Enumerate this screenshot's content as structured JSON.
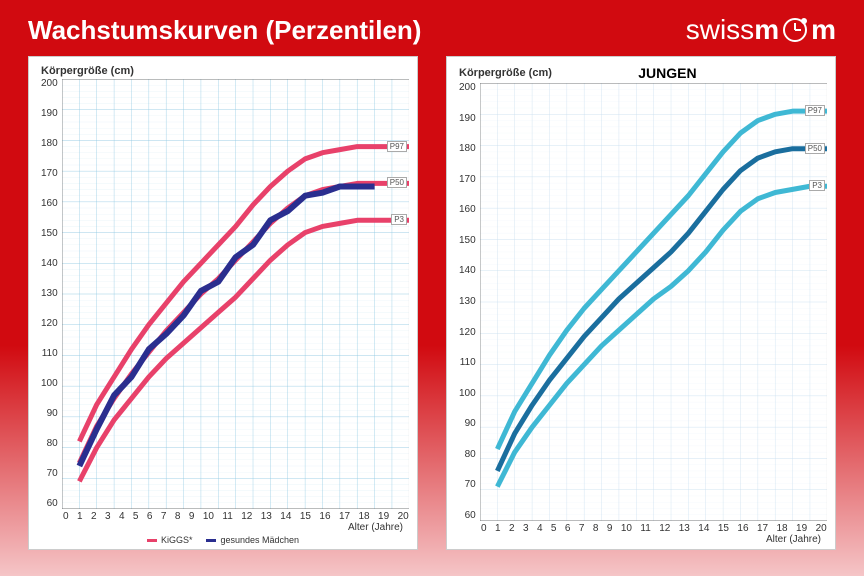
{
  "header": {
    "title": "Wachstumskurven (Perzentilen)",
    "logo_light": "swiss",
    "logo_bold": "m",
    "logo_end": "m"
  },
  "colors": {
    "bg_red": "#d10a10",
    "girls_grid": "#8fc9e3",
    "girls_p97": "#e8416a",
    "girls_p50": "#e8416a",
    "girls_p3": "#e8416a",
    "girls_sample": "#2a2e8f",
    "boys_grid": "#c9dff0",
    "boys_p97": "#3fb8d4",
    "boys_p50": "#1a6e9e",
    "boys_p3": "#3fb8d4"
  },
  "axes": {
    "y_title": "Körpergröße (cm)",
    "x_title": "Alter (Jahre)",
    "y_min": 60,
    "y_max": 200,
    "y_step": 10,
    "x_min": 0,
    "x_max": 20,
    "x_step": 1
  },
  "girls": {
    "title": "",
    "legend": [
      {
        "label": "KiGGS*",
        "color": "#e8416a"
      },
      {
        "label": "gesundes Mädchen",
        "color": "#2a2e8f"
      }
    ],
    "labels": {
      "p97": "P97",
      "p50": "P50",
      "p3": "P3"
    },
    "series": {
      "p97": [
        [
          1,
          82
        ],
        [
          2,
          94
        ],
        [
          3,
          103
        ],
        [
          4,
          112
        ],
        [
          5,
          120
        ],
        [
          6,
          127
        ],
        [
          7,
          134
        ],
        [
          8,
          140
        ],
        [
          9,
          146
        ],
        [
          10,
          152
        ],
        [
          11,
          159
        ],
        [
          12,
          165
        ],
        [
          13,
          170
        ],
        [
          14,
          174
        ],
        [
          15,
          176
        ],
        [
          16,
          177
        ],
        [
          17,
          178
        ],
        [
          18,
          178
        ],
        [
          19,
          178
        ],
        [
          20,
          178
        ]
      ],
      "p50": [
        [
          1,
          75
        ],
        [
          2,
          87
        ],
        [
          3,
          96
        ],
        [
          4,
          104
        ],
        [
          5,
          111
        ],
        [
          6,
          118
        ],
        [
          7,
          124
        ],
        [
          8,
          130
        ],
        [
          9,
          135
        ],
        [
          10,
          141
        ],
        [
          11,
          147
        ],
        [
          12,
          153
        ],
        [
          13,
          158
        ],
        [
          14,
          162
        ],
        [
          15,
          164
        ],
        [
          16,
          165
        ],
        [
          17,
          166
        ],
        [
          18,
          166
        ],
        [
          19,
          166
        ],
        [
          20,
          166
        ]
      ],
      "p3": [
        [
          1,
          69
        ],
        [
          2,
          80
        ],
        [
          3,
          89
        ],
        [
          4,
          96
        ],
        [
          5,
          103
        ],
        [
          6,
          109
        ],
        [
          7,
          114
        ],
        [
          8,
          119
        ],
        [
          9,
          124
        ],
        [
          10,
          129
        ],
        [
          11,
          135
        ],
        [
          12,
          141
        ],
        [
          13,
          146
        ],
        [
          14,
          150
        ],
        [
          15,
          152
        ],
        [
          16,
          153
        ],
        [
          17,
          154
        ],
        [
          18,
          154
        ],
        [
          19,
          154
        ],
        [
          20,
          154
        ]
      ],
      "sample": [
        [
          1,
          74
        ],
        [
          2,
          86
        ],
        [
          3,
          97
        ],
        [
          4,
          103
        ],
        [
          5,
          112
        ],
        [
          6,
          117
        ],
        [
          7,
          123
        ],
        [
          8,
          131
        ],
        [
          9,
          134
        ],
        [
          10,
          142
        ],
        [
          11,
          146
        ],
        [
          12,
          154
        ],
        [
          13,
          157
        ],
        [
          14,
          162
        ],
        [
          15,
          163
        ],
        [
          16,
          165
        ],
        [
          17,
          165
        ],
        [
          18,
          165
        ]
      ]
    }
  },
  "boys": {
    "title": "JUNGEN",
    "labels": {
      "p97": "P97",
      "p50": "P50",
      "p3": "P3"
    },
    "series": {
      "p97": [
        [
          1,
          83
        ],
        [
          2,
          95
        ],
        [
          3,
          104
        ],
        [
          4,
          113
        ],
        [
          5,
          121
        ],
        [
          6,
          128
        ],
        [
          7,
          134
        ],
        [
          8,
          140
        ],
        [
          9,
          146
        ],
        [
          10,
          152
        ],
        [
          11,
          158
        ],
        [
          12,
          164
        ],
        [
          13,
          171
        ],
        [
          14,
          178
        ],
        [
          15,
          184
        ],
        [
          16,
          188
        ],
        [
          17,
          190
        ],
        [
          18,
          191
        ],
        [
          19,
          191
        ],
        [
          20,
          191
        ]
      ],
      "p50": [
        [
          1,
          76
        ],
        [
          2,
          88
        ],
        [
          3,
          97
        ],
        [
          4,
          105
        ],
        [
          5,
          112
        ],
        [
          6,
          119
        ],
        [
          7,
          125
        ],
        [
          8,
          131
        ],
        [
          9,
          136
        ],
        [
          10,
          141
        ],
        [
          11,
          146
        ],
        [
          12,
          152
        ],
        [
          13,
          159
        ],
        [
          14,
          166
        ],
        [
          15,
          172
        ],
        [
          16,
          176
        ],
        [
          17,
          178
        ],
        [
          18,
          179
        ],
        [
          19,
          179
        ],
        [
          20,
          179
        ]
      ],
      "p3": [
        [
          1,
          71
        ],
        [
          2,
          82
        ],
        [
          3,
          90
        ],
        [
          4,
          97
        ],
        [
          5,
          104
        ],
        [
          6,
          110
        ],
        [
          7,
          116
        ],
        [
          8,
          121
        ],
        [
          9,
          126
        ],
        [
          10,
          131
        ],
        [
          11,
          135
        ],
        [
          12,
          140
        ],
        [
          13,
          146
        ],
        [
          14,
          153
        ],
        [
          15,
          159
        ],
        [
          16,
          163
        ],
        [
          17,
          165
        ],
        [
          18,
          166
        ],
        [
          19,
          167
        ],
        [
          20,
          167
        ]
      ]
    }
  }
}
